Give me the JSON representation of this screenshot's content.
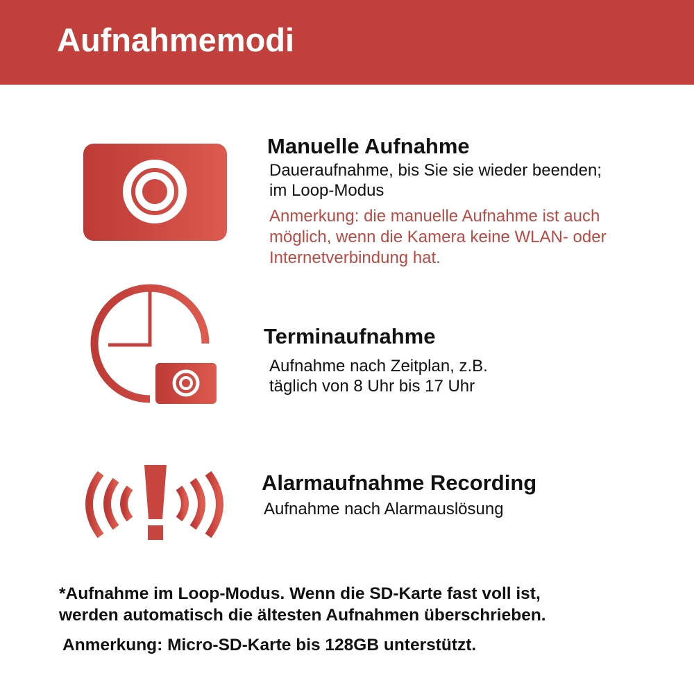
{
  "header": {
    "title": "Aufnahmemodi"
  },
  "colors": {
    "accent": "#c2403c",
    "icon_gradient_start": "#bd3a36",
    "icon_gradient_end": "#dd5a4e",
    "note_text": "#b94a44"
  },
  "modes": [
    {
      "icon": "record-button-icon",
      "title": "Manuelle Aufnahme",
      "lines": [
        "Daueraufnahme, bis Sie sie wieder beenden;",
        "im Loop-Modus"
      ],
      "note_lines": [
        "Anmerkung: die manuelle Aufnahme ist auch",
        "möglich, wenn die Kamera keine WLAN- oder",
        "Internetverbindung hat."
      ]
    },
    {
      "icon": "clock-record-icon",
      "title": "Terminaufnahme",
      "lines": [
        "Aufnahme nach Zeitplan, z.B.",
        "täglich von 8 Uhr bis 17 Uhr"
      ]
    },
    {
      "icon": "alarm-icon",
      "title": "Alarmaufnahme Recording",
      "lines": [
        "Aufnahme nach Alarmauslösung"
      ]
    }
  ],
  "footer": {
    "lines": [
      "*Aufnahme im Loop-Modus. Wenn die SD-Karte fast voll ist,",
      "werden automatisch die ältesten Aufnahmen überschrieben."
    ],
    "note": "Anmerkung: Micro-SD-Karte bis 128GB unterstützt."
  }
}
